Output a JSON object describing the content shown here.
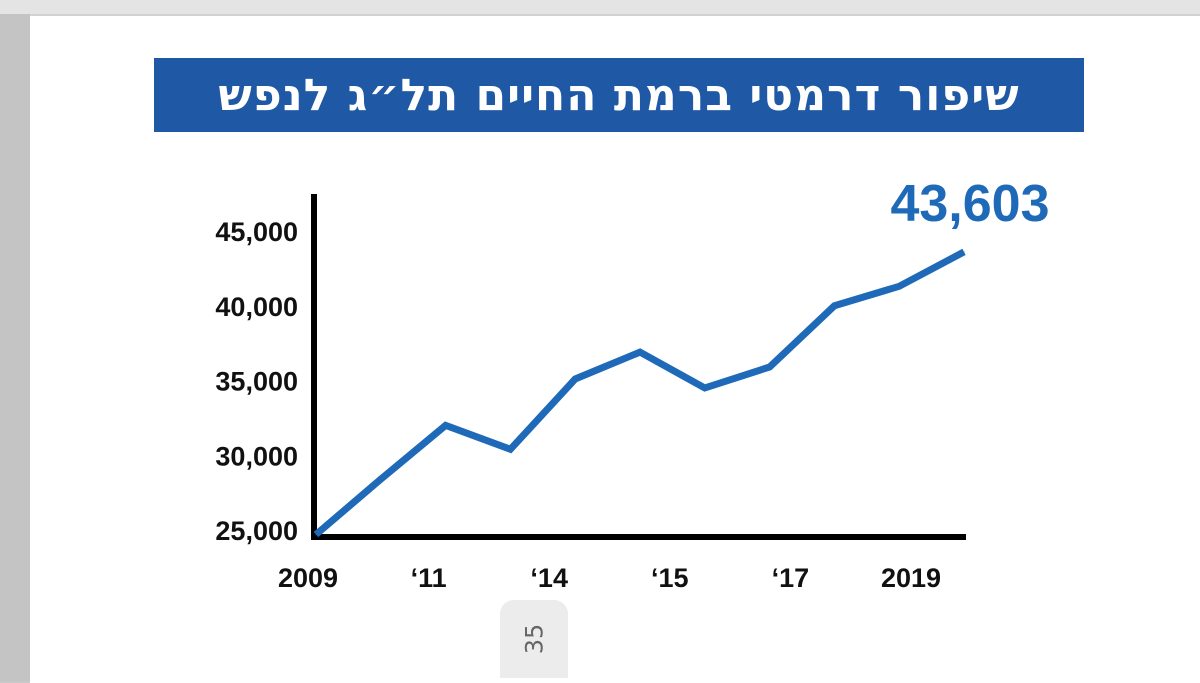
{
  "title": "שיפור דרמטי ברמת החיים תל״ג לנפש",
  "page_number": "35",
  "colors": {
    "banner": "#1f58a5",
    "line": "#1f6ab8",
    "axis": "#000000",
    "highlight": "#1f6ab8"
  },
  "chart_data": {
    "type": "line",
    "title": "שיפור דרמטי ברמת החיים תל״ג לנפש",
    "xlabel": "",
    "ylabel": "",
    "x_ticks": [
      "2009",
      "‘11",
      "‘14",
      "‘15",
      "‘17",
      "2019"
    ],
    "y_ticks": [
      "45,000",
      "40,000",
      "35,000",
      "30,000",
      "25,000"
    ],
    "y_tick_values": [
      45000,
      40000,
      35000,
      30000,
      25000
    ],
    "ylim": [
      25000,
      45000
    ],
    "grid": false,
    "legend": "none",
    "highlight_label": "43,603",
    "series": [
      {
        "values": [
          24700,
          28400,
          32000,
          30400,
          35100,
          36900,
          34500,
          35900,
          40000,
          41300,
          43603
        ]
      }
    ]
  }
}
